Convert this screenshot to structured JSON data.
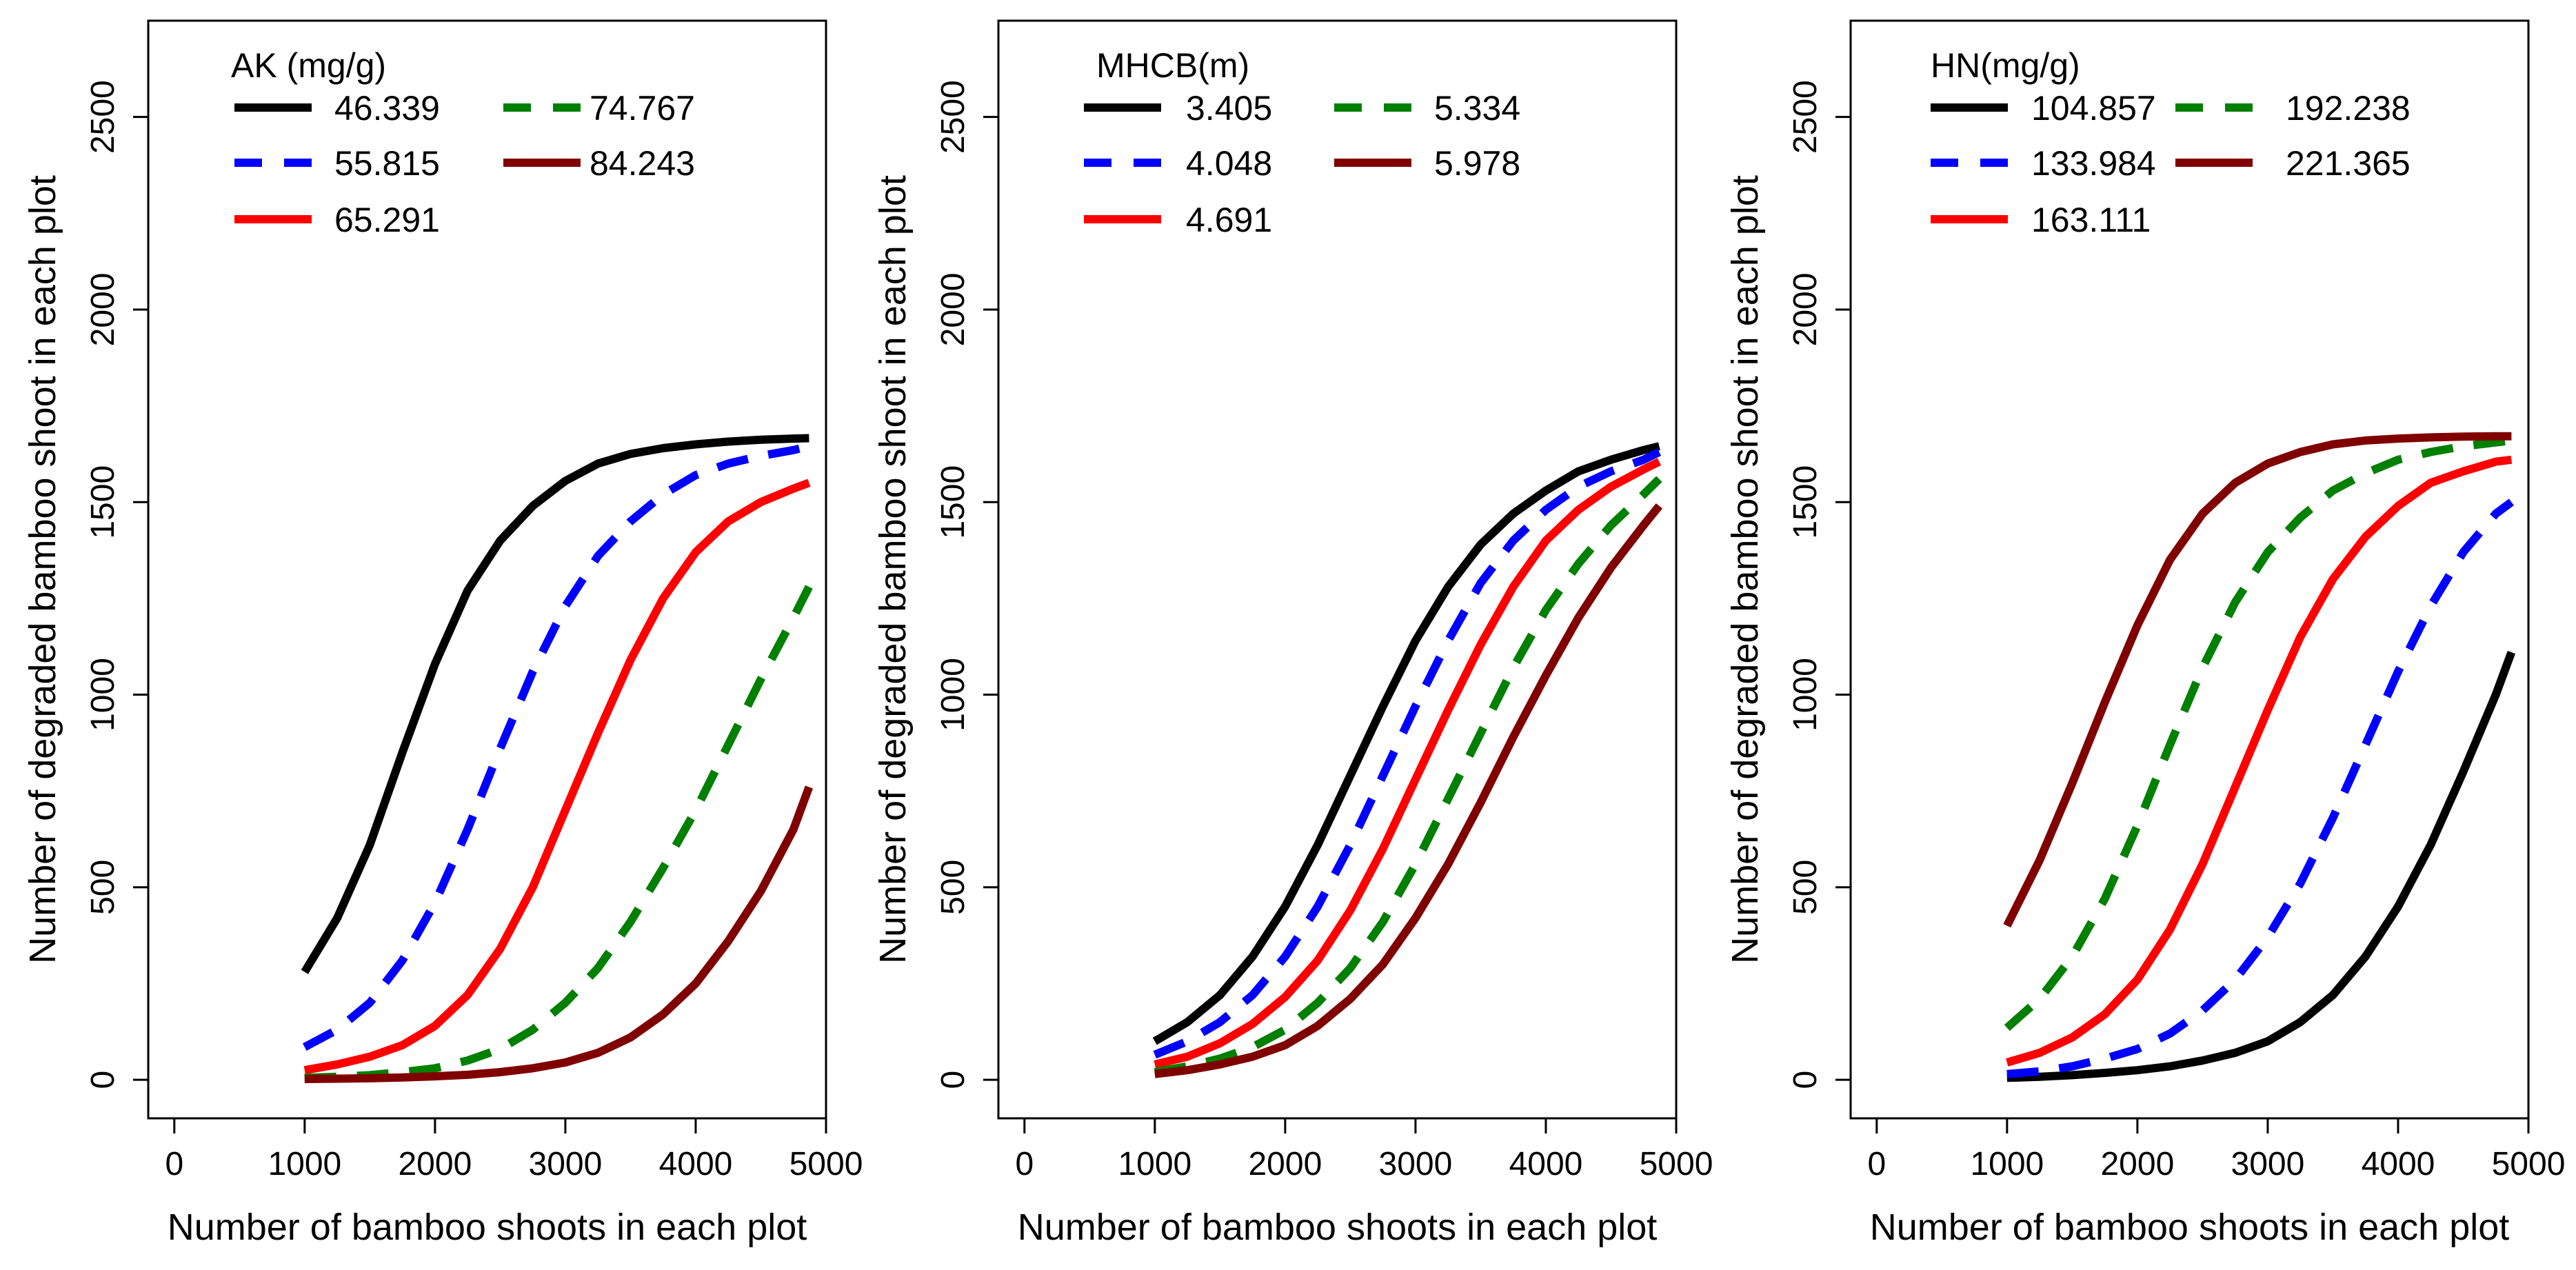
{
  "chart_data": [
    {
      "type": "line",
      "xlabel": "Number of bamboo shoots in each plot",
      "ylabel": "Number of degraded bamboo shoot in each plot",
      "xlim": [
        -200,
        5000
      ],
      "ylim": [
        -100,
        2750
      ],
      "xticks": [
        "0",
        "1000",
        "2000",
        "3000",
        "4000",
        "5000"
      ],
      "yticks": [
        "0",
        "500",
        "1000",
        "1500",
        "2000",
        "2500"
      ],
      "legend_title": "AK (mg/g)",
      "legend_position": "top-left",
      "series": [
        {
          "name": "46.339",
          "color": "#000000",
          "dash": "solid",
          "x": [
            1000,
            1250,
            1500,
            1750,
            2000,
            2250,
            2500,
            2750,
            3000,
            3250,
            3500,
            3750,
            4000,
            4250,
            4500,
            4750,
            4870
          ],
          "values": [
            280,
            420,
            610,
            850,
            1080,
            1270,
            1400,
            1490,
            1555,
            1600,
            1625,
            1640,
            1650,
            1657,
            1662,
            1665,
            1666
          ]
        },
        {
          "name": "55.815",
          "color": "#0000ff",
          "dash": "dashed",
          "x": [
            1000,
            1250,
            1500,
            1750,
            2000,
            2250,
            2500,
            2750,
            3000,
            3250,
            3500,
            3750,
            4000,
            4250,
            4500,
            4750,
            4870
          ],
          "values": [
            85,
            130,
            200,
            310,
            460,
            650,
            860,
            1060,
            1230,
            1360,
            1450,
            1520,
            1570,
            1600,
            1620,
            1635,
            1645
          ]
        },
        {
          "name": "65.291",
          "color": "#ff0000",
          "dash": "solid",
          "x": [
            1000,
            1250,
            1500,
            1750,
            2000,
            2250,
            2500,
            2750,
            3000,
            3250,
            3500,
            3750,
            4000,
            4250,
            4500,
            4750,
            4870
          ],
          "values": [
            25,
            40,
            60,
            90,
            140,
            220,
            340,
            500,
            700,
            900,
            1090,
            1250,
            1370,
            1450,
            1500,
            1535,
            1550
          ]
        },
        {
          "name": "74.767",
          "color": "#008000",
          "dash": "dashed",
          "x": [
            1000,
            1250,
            1500,
            1750,
            2000,
            2250,
            2500,
            2750,
            3000,
            3250,
            3500,
            3750,
            4000,
            4250,
            4500,
            4750,
            4870
          ],
          "values": [
            5,
            8,
            12,
            20,
            30,
            50,
            80,
            130,
            200,
            290,
            410,
            550,
            700,
            870,
            1040,
            1200,
            1280
          ]
        },
        {
          "name": "84.243",
          "color": "#800000",
          "dash": "solid",
          "x": [
            1000,
            1250,
            1500,
            1750,
            2000,
            2250,
            2500,
            2750,
            3000,
            3250,
            3500,
            3750,
            4000,
            4250,
            4500,
            4750,
            4870
          ],
          "values": [
            2,
            3,
            4,
            6,
            9,
            13,
            20,
            30,
            45,
            70,
            110,
            170,
            250,
            360,
            490,
            650,
            760
          ]
        }
      ]
    },
    {
      "type": "line",
      "xlabel": "Number of bamboo shoots in each plot",
      "ylabel": "Number of degraded bamboo shoot in each plot",
      "xlim": [
        -200,
        5000
      ],
      "ylim": [
        -100,
        2750
      ],
      "xticks": [
        "0",
        "1000",
        "2000",
        "3000",
        "4000",
        "5000"
      ],
      "yticks": [
        "0",
        "500",
        "1000",
        "1500",
        "2000",
        "2500"
      ],
      "legend_title": "MHCB(m)",
      "legend_position": "top-left",
      "series": [
        {
          "name": "3.405",
          "color": "#000000",
          "dash": "solid",
          "x": [
            1000,
            1250,
            1500,
            1750,
            2000,
            2250,
            2500,
            2750,
            3000,
            3250,
            3500,
            3750,
            4000,
            4250,
            4500,
            4750,
            4870
          ],
          "values": [
            100,
            150,
            220,
            320,
            450,
            610,
            790,
            970,
            1140,
            1280,
            1390,
            1470,
            1530,
            1580,
            1610,
            1635,
            1645
          ]
        },
        {
          "name": "4.048",
          "color": "#0000ff",
          "dash": "dashed",
          "x": [
            1000,
            1250,
            1500,
            1750,
            2000,
            2250,
            2500,
            2750,
            3000,
            3250,
            3500,
            3750,
            4000,
            4250,
            4500,
            4750,
            4870
          ],
          "values": [
            65,
            100,
            150,
            220,
            320,
            450,
            610,
            790,
            970,
            1140,
            1290,
            1400,
            1480,
            1540,
            1580,
            1610,
            1630
          ]
        },
        {
          "name": "4.691",
          "color": "#ff0000",
          "dash": "solid",
          "x": [
            1000,
            1250,
            1500,
            1750,
            2000,
            2250,
            2500,
            2750,
            3000,
            3250,
            3500,
            3750,
            4000,
            4250,
            4500,
            4750,
            4870
          ],
          "values": [
            40,
            60,
            95,
            145,
            215,
            310,
            440,
            600,
            780,
            960,
            1130,
            1280,
            1400,
            1480,
            1540,
            1585,
            1605
          ]
        },
        {
          "name": "5.334",
          "color": "#008000",
          "dash": "dashed",
          "x": [
            1000,
            1250,
            1500,
            1750,
            2000,
            2250,
            2500,
            2750,
            3000,
            3250,
            3500,
            3750,
            4000,
            4250,
            4500,
            4750,
            4870
          ],
          "values": [
            20,
            35,
            55,
            85,
            130,
            200,
            290,
            410,
            560,
            730,
            900,
            1070,
            1220,
            1340,
            1440,
            1520,
            1560
          ]
        },
        {
          "name": "5.978",
          "color": "#800000",
          "dash": "solid",
          "x": [
            1000,
            1250,
            1500,
            1750,
            2000,
            2250,
            2500,
            2750,
            3000,
            3250,
            3500,
            3750,
            4000,
            4250,
            4500,
            4750,
            4870
          ],
          "values": [
            15,
            25,
            40,
            60,
            90,
            140,
            210,
            300,
            420,
            560,
            720,
            890,
            1050,
            1200,
            1330,
            1440,
            1490
          ]
        }
      ]
    },
    {
      "type": "line",
      "xlabel": "Number of bamboo shoots in each plot",
      "ylabel": "Number of degraded bamboo shoot in each plot",
      "xlim": [
        -200,
        5000
      ],
      "ylim": [
        -100,
        2750
      ],
      "xticks": [
        "0",
        "1000",
        "2000",
        "3000",
        "4000",
        "5000"
      ],
      "yticks": [
        "0",
        "500",
        "1000",
        "1500",
        "2000",
        "2500"
      ],
      "legend_title": "HN(mg/g)",
      "legend_position": "top-left",
      "series": [
        {
          "name": "104.857",
          "color": "#000000",
          "dash": "solid",
          "x": [
            1000,
            1250,
            1500,
            1750,
            2000,
            2250,
            2500,
            2750,
            3000,
            3250,
            3500,
            3750,
            4000,
            4250,
            4500,
            4750,
            4870
          ],
          "values": [
            5,
            8,
            12,
            18,
            25,
            35,
            50,
            70,
            100,
            150,
            220,
            320,
            450,
            610,
            800,
            1000,
            1110
          ]
        },
        {
          "name": "133.984",
          "color": "#0000ff",
          "dash": "dashed",
          "x": [
            1000,
            1250,
            1500,
            1750,
            2000,
            2250,
            2500,
            2750,
            3000,
            3250,
            3500,
            3750,
            4000,
            4250,
            4500,
            4750,
            4870
          ],
          "values": [
            15,
            22,
            35,
            55,
            80,
            120,
            180,
            260,
            370,
            510,
            680,
            870,
            1060,
            1230,
            1370,
            1470,
            1500
          ]
        },
        {
          "name": "163.111",
          "color": "#ff0000",
          "dash": "solid",
          "x": [
            1000,
            1250,
            1500,
            1750,
            2000,
            2250,
            2500,
            2750,
            3000,
            3250,
            3500,
            3750,
            4000,
            4250,
            4500,
            4750,
            4870
          ],
          "values": [
            45,
            70,
            110,
            170,
            260,
            390,
            560,
            760,
            960,
            1150,
            1300,
            1410,
            1490,
            1550,
            1580,
            1605,
            1610
          ]
        },
        {
          "name": "192.238",
          "color": "#008000",
          "dash": "dashed",
          "x": [
            1000,
            1250,
            1500,
            1750,
            2000,
            2250,
            2500,
            2750,
            3000,
            3250,
            3500,
            3750,
            4000,
            4250,
            4500,
            4750,
            4870
          ],
          "values": [
            135,
            210,
            320,
            470,
            660,
            870,
            1070,
            1240,
            1370,
            1460,
            1530,
            1575,
            1610,
            1630,
            1645,
            1655,
            1660
          ]
        },
        {
          "name": "221.365",
          "color": "#800000",
          "dash": "solid",
          "x": [
            1000,
            1250,
            1500,
            1750,
            2000,
            2250,
            2500,
            2750,
            3000,
            3250,
            3500,
            3750,
            4000,
            4250,
            4500,
            4750,
            4870
          ],
          "values": [
            400,
            570,
            770,
            980,
            1180,
            1350,
            1470,
            1550,
            1600,
            1630,
            1650,
            1660,
            1665,
            1668,
            1670,
            1671,
            1671
          ]
        }
      ]
    }
  ]
}
